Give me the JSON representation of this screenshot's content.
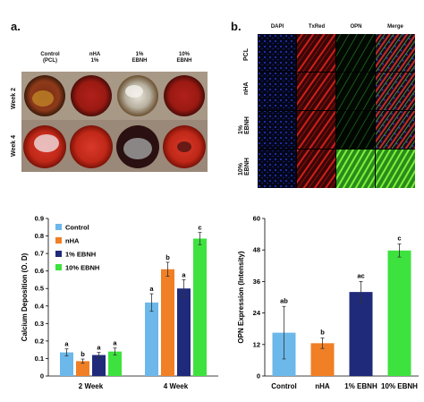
{
  "panel_a": {
    "label": "a.",
    "columns": [
      "Control\n(PCL)",
      "nHA\n1%",
      "1%\nEBNH",
      "10%\nEBNH"
    ],
    "rows": [
      "Week 2",
      "Week 4"
    ]
  },
  "panel_b": {
    "label": "b.",
    "columns": [
      "DAPI",
      "TxRed",
      "OPN",
      "Merge"
    ],
    "rows": [
      "PCL",
      "nHA",
      "1%\nEBNH",
      "10%\nEBNH"
    ]
  },
  "chart_data": [
    {
      "type": "bar",
      "title": "",
      "xlabel": "",
      "ylabel": "Calcium Deposition (O. D)",
      "ylim": [
        0,
        0.9
      ],
      "yticks": [
        "0",
        "0.1",
        "0.2",
        "0.3",
        "0.4",
        "0.5",
        "0.6",
        "0.7",
        "0.8",
        "0.9"
      ],
      "categories": [
        "2 Week",
        "4 Week"
      ],
      "legend_position": "top-left",
      "series": [
        {
          "name": "Control",
          "color": "#6cb8ea",
          "values": [
            0.135,
            0.42
          ],
          "errors": [
            0.02,
            0.05
          ],
          "letters": [
            "a",
            "a"
          ]
        },
        {
          "name": "nHA",
          "color": "#f07f26",
          "values": [
            0.085,
            0.61
          ],
          "errors": [
            0.012,
            0.04
          ],
          "letters": [
            "b",
            "b"
          ]
        },
        {
          "name": "1% EBNH",
          "color": "#1f2a7a",
          "values": [
            0.12,
            0.5
          ],
          "errors": [
            0.015,
            0.05
          ],
          "letters": [
            "a",
            "a"
          ]
        },
        {
          "name": "10% EBNH",
          "color": "#3ee23e",
          "values": [
            0.14,
            0.785
          ],
          "errors": [
            0.02,
            0.035
          ],
          "letters": [
            "a",
            "c"
          ]
        }
      ]
    },
    {
      "type": "bar",
      "title": "",
      "xlabel": "",
      "ylabel": "OPN Expression (Intensity)",
      "ylim": [
        0,
        60
      ],
      "yticks": [
        "0",
        "12",
        "24",
        "36",
        "48",
        "60"
      ],
      "categories": [
        "Control",
        "nHA",
        "1% EBNH",
        "10% EBNH"
      ],
      "values": [
        16.5,
        12.5,
        32,
        47.8
      ],
      "errors": [
        10,
        2,
        4,
        2.5
      ],
      "letters": [
        "ab",
        "b",
        "ac",
        "c"
      ],
      "colors": [
        "#6cb8ea",
        "#f07f26",
        "#1f2a7a",
        "#3ee23e"
      ]
    }
  ]
}
